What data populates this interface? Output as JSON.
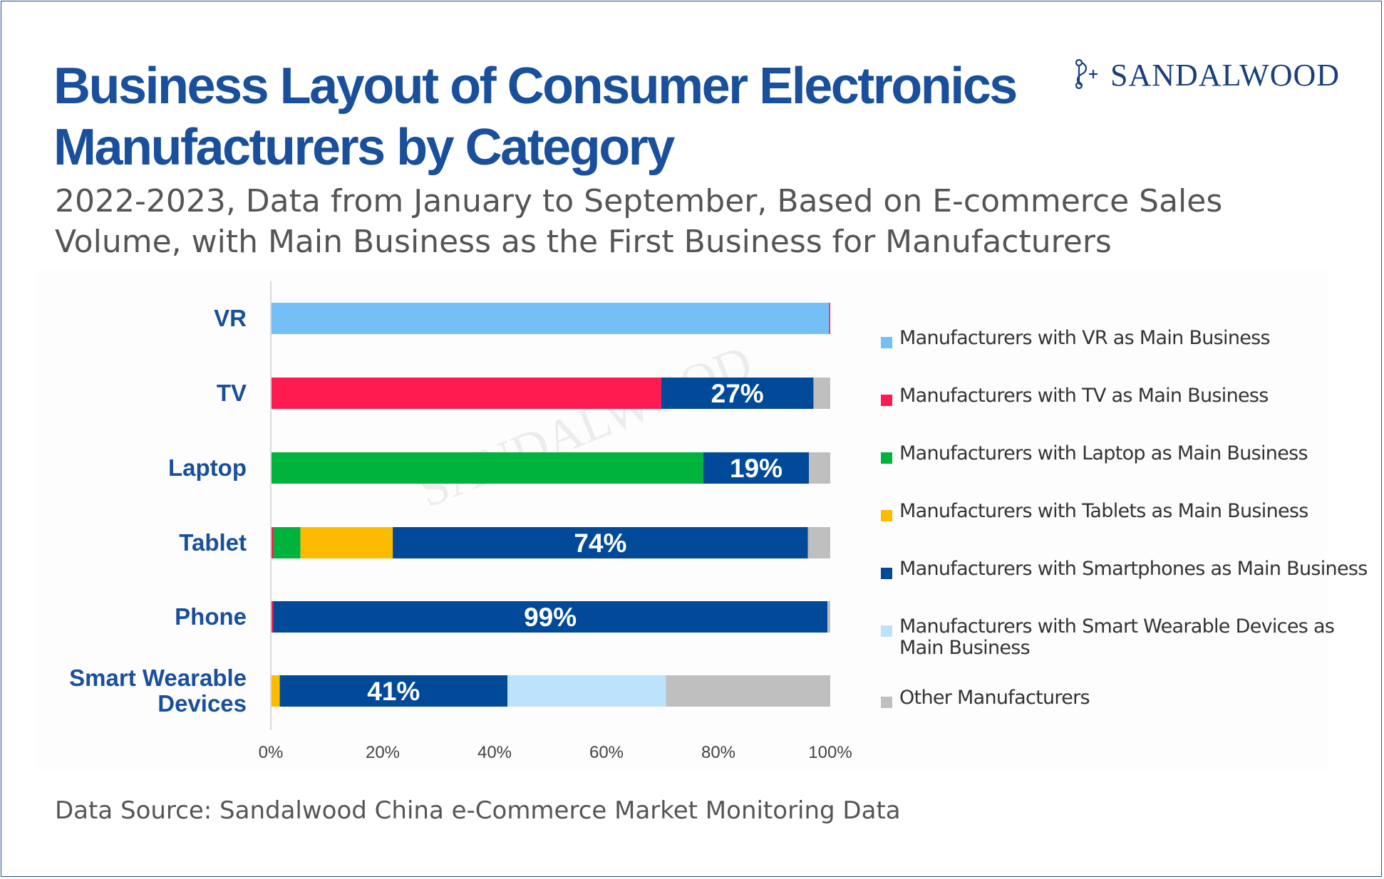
{
  "title": "Business Layout of Consumer Electronics Manufacturers by Category",
  "subtitle": "2022-2023, Data from January to September, Based on E-commerce Sales Volume, with Main Business as the First Business for Manufacturers",
  "logo": {
    "text": "SANDALWOOD",
    "icon": "sandalwood-logo-mark"
  },
  "watermark": "SANDALWOOD",
  "source": "Data Source: Sandalwood China e-Commerce Market Monitoring Data",
  "colors": {
    "VR": "#74c0f6",
    "TV": "#ff1a4f",
    "Laptop": "#00b33c",
    "Tablets": "#fdbb00",
    "Smartphones": "#004a99",
    "Smart Wearable Devices": "#bde2fb",
    "Other": "#bfbfbf"
  },
  "chart_data": {
    "type": "bar",
    "orientation": "horizontal",
    "stacked": true,
    "categories": [
      "VR",
      "TV",
      "Laptop",
      "Tablet",
      "Phone",
      "Smart Wearable Devices"
    ],
    "category_lines": [
      [
        "VR"
      ],
      [
        "TV"
      ],
      [
        "Laptop"
      ],
      [
        "Tablet"
      ],
      [
        "Phone"
      ],
      [
        "Smart Wearable",
        "Devices"
      ]
    ],
    "series": [
      {
        "name": "Manufacturers with VR as Main Business",
        "color": "#74c0f6",
        "values": [
          99.8,
          0,
          0,
          0,
          0,
          0
        ]
      },
      {
        "name": "Manufacturers with TV as Main Business",
        "color": "#ff1a4f",
        "values": [
          0.2,
          69.8,
          0,
          0.5,
          0.4,
          0
        ]
      },
      {
        "name": "Manufacturers with Laptop as Main Business",
        "color": "#00b33c",
        "values": [
          0,
          0,
          77.3,
          4.8,
          0,
          0
        ]
      },
      {
        "name": "Manufacturers with Tablets as Main Business",
        "color": "#fdbb00",
        "values": [
          0,
          0,
          0,
          16.5,
          0,
          1.6
        ]
      },
      {
        "name": "Manufacturers with Smartphones as Main Business",
        "color": "#004a99",
        "values": [
          0,
          27.2,
          18.9,
          74.2,
          99.1,
          40.7
        ]
      },
      {
        "name": "Manufacturers with Smart Wearable Devices as Main Business",
        "color": "#bde2fb",
        "values": [
          0,
          0,
          0,
          0,
          0,
          28.3
        ]
      },
      {
        "name": "Other Manufacturers",
        "color": "#bfbfbf",
        "values": [
          0,
          3.0,
          3.8,
          4.0,
          0.5,
          29.4
        ]
      }
    ],
    "data_labels": [
      {
        "category": "TV",
        "series": "Manufacturers with Smartphones as Main Business",
        "text": "27%"
      },
      {
        "category": "Laptop",
        "series": "Manufacturers with Smartphones as Main Business",
        "text": "19%"
      },
      {
        "category": "Tablet",
        "series": "Manufacturers with Smartphones as Main Business",
        "text": "74%"
      },
      {
        "category": "Phone",
        "series": "Manufacturers with Smartphones as Main Business",
        "text": "99%"
      },
      {
        "category": "Smart Wearable Devices",
        "series": "Manufacturers with Smartphones as Main Business",
        "text": "41%"
      }
    ],
    "x_ticks": [
      "0%",
      "20%",
      "40%",
      "60%",
      "80%",
      "100%"
    ],
    "xlim": [
      0,
      100
    ],
    "grid": false,
    "legend_position": "right",
    "legend_entries": [
      "Manufacturers with VR as Main Business",
      "Manufacturers with TV as Main Business",
      "Manufacturers with Laptop as Main Business",
      "Manufacturers with Tablets as Main Business",
      "Manufacturers with Smartphones as Main Business",
      "Manufacturers with Smart Wearable Devices as Main Business",
      "Other Manufacturers"
    ]
  }
}
